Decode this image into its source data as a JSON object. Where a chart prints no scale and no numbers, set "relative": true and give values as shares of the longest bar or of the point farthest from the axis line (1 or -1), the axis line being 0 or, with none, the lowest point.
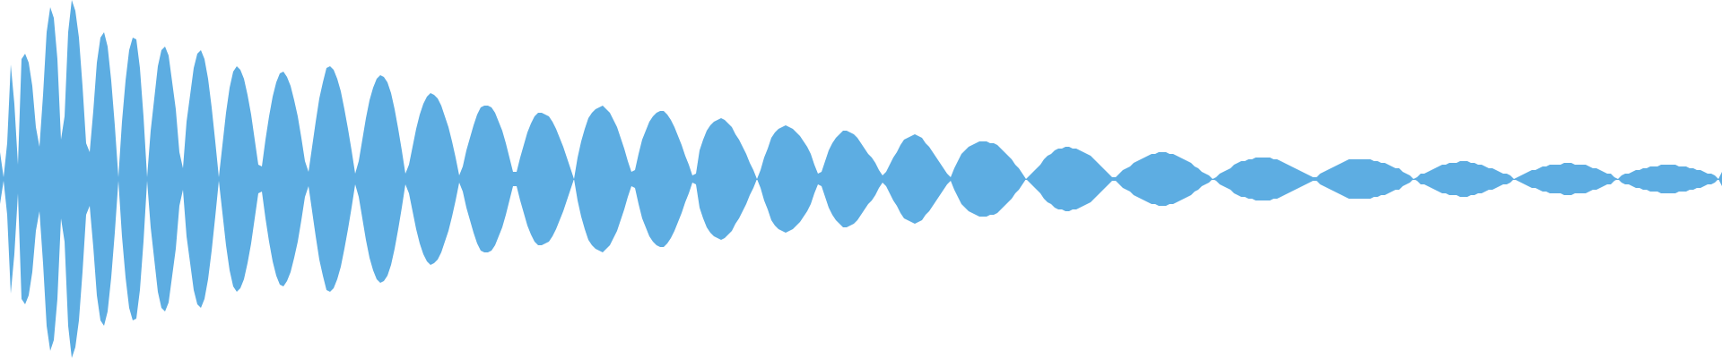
{
  "chart_data": {
    "type": "area",
    "relative": true,
    "categories": [
      null,
      null,
      null,
      null,
      null,
      null,
      null,
      null,
      null,
      null,
      null,
      null,
      null,
      null,
      null,
      null,
      null,
      null,
      null,
      null,
      null,
      null,
      null,
      null,
      null,
      null,
      null,
      null,
      null,
      null,
      null,
      null,
      null,
      null,
      null,
      null,
      null,
      null,
      null,
      null,
      null,
      null,
      null,
      null,
      null,
      null,
      null,
      null,
      null,
      null,
      null,
      null,
      null,
      null,
      null,
      null,
      null,
      null,
      null,
      null,
      null,
      null,
      null,
      null,
      null,
      null,
      null,
      null,
      null,
      null,
      null,
      null,
      null,
      null,
      null,
      null,
      null,
      null,
      null,
      null,
      null,
      null,
      null,
      null,
      null,
      null,
      null,
      null,
      null,
      null,
      null,
      null,
      null,
      null,
      null,
      null,
      null,
      null,
      null,
      null,
      null,
      null,
      null,
      null,
      null,
      null,
      null,
      null,
      null,
      null,
      null,
      null,
      null,
      null,
      null,
      null,
      null,
      null,
      null,
      null,
      null,
      null,
      null,
      null,
      null,
      null,
      null,
      null,
      null,
      null,
      null,
      null,
      null,
      null,
      null,
      null,
      null,
      null,
      null,
      null,
      null,
      null,
      null,
      null,
      null,
      null,
      null,
      null,
      null,
      null,
      null,
      null,
      null,
      null,
      null,
      null,
      null,
      null,
      null,
      null,
      null,
      null,
      null,
      null,
      null,
      null,
      null,
      null,
      null,
      null,
      null,
      null,
      null,
      null,
      null,
      null,
      null,
      null,
      null,
      null,
      null,
      null,
      null,
      null,
      null,
      null,
      null,
      null,
      null,
      null,
      null,
      null,
      null,
      null,
      null,
      null,
      null,
      null,
      null,
      null,
      null,
      null,
      null,
      null,
      null,
      null,
      null,
      null,
      null,
      null,
      null,
      null,
      null,
      null,
      null,
      null,
      null,
      null,
      null,
      null,
      null,
      null,
      null,
      null,
      null,
      null,
      null,
      null,
      null,
      null,
      null,
      null,
      null,
      null,
      null,
      null,
      null,
      null,
      null,
      null,
      null,
      null,
      null,
      null,
      null,
      null,
      null,
      null,
      null,
      null,
      null,
      null,
      null,
      null,
      null,
      null,
      null,
      null,
      null,
      null,
      null,
      null,
      null,
      null,
      null,
      null,
      null,
      null,
      null,
      null,
      null,
      null,
      null,
      null,
      null,
      null,
      null,
      null,
      null,
      null,
      null,
      null,
      null,
      null,
      null,
      null,
      null,
      null,
      null,
      null,
      null,
      null,
      null,
      null,
      null,
      null,
      null,
      null,
      null,
      null,
      null,
      null,
      null,
      null,
      null,
      null,
      null,
      null,
      null,
      null,
      null,
      null,
      null,
      null,
      null,
      null,
      null,
      null,
      null,
      null,
      null,
      null,
      null,
      null,
      null,
      null,
      null,
      null,
      null,
      null,
      null,
      null,
      null,
      null,
      null,
      null,
      null,
      null,
      null,
      null,
      null,
      null,
      null,
      null,
      null,
      null,
      null,
      null,
      null,
      null,
      null,
      null,
      null,
      null,
      null,
      null,
      null,
      null,
      null,
      null,
      null,
      null,
      null,
      null,
      null,
      null,
      null,
      null,
      null,
      null,
      null,
      null,
      null,
      null,
      null,
      null,
      null,
      null,
      null,
      null,
      null,
      null,
      null,
      null,
      null,
      null,
      null,
      null,
      null,
      null,
      null,
      null,
      null,
      null,
      null,
      null,
      null,
      null,
      null,
      null,
      null,
      null,
      null,
      null,
      null,
      null,
      null,
      null,
      null,
      null,
      null,
      null,
      null,
      null,
      null,
      null,
      null,
      null,
      null,
      null,
      null,
      null,
      null,
      null,
      null,
      null,
      null,
      null,
      null,
      null,
      null,
      null,
      null,
      null,
      null,
      null,
      null,
      null,
      null,
      null,
      null,
      null,
      null,
      null,
      null,
      null,
      null,
      null,
      null,
      null,
      null,
      null,
      null,
      null,
      null,
      null,
      null,
      null,
      null,
      null,
      null,
      null,
      null,
      null,
      null,
      null,
      null,
      null,
      null,
      null,
      null,
      null,
      null,
      null,
      null,
      null,
      null,
      null,
      null,
      null,
      null
    ],
    "series": [
      {
        "color": "#5dade2",
        "values": [
          0.15,
          0.01,
          0.2,
          0.64,
          0.42,
          0.08,
          0.67,
          0.7,
          0.65,
          0.52,
          0.29,
          0.18,
          0.47,
          0.82,
          0.96,
          0.9,
          0.67,
          0.22,
          0.35,
          0.82,
          1.0,
          0.94,
          0.79,
          0.52,
          0.2,
          0.15,
          0.38,
          0.65,
          0.79,
          0.82,
          0.74,
          0.55,
          0.3,
          0.01,
          0.32,
          0.55,
          0.72,
          0.79,
          0.78,
          0.62,
          0.35,
          0.01,
          0.27,
          0.45,
          0.63,
          0.72,
          0.74,
          0.69,
          0.54,
          0.39,
          0.15,
          0.06,
          0.32,
          0.47,
          0.62,
          0.7,
          0.72,
          0.67,
          0.56,
          0.4,
          0.21,
          0.01,
          0.19,
          0.37,
          0.51,
          0.6,
          0.63,
          0.61,
          0.56,
          0.47,
          0.36,
          0.22,
          0.08,
          0.07,
          0.22,
          0.35,
          0.46,
          0.54,
          0.59,
          0.6,
          0.57,
          0.52,
          0.44,
          0.35,
          0.23,
          0.1,
          0.04,
          0.18,
          0.32,
          0.45,
          0.54,
          0.62,
          0.63,
          0.61,
          0.56,
          0.49,
          0.39,
          0.28,
          0.16,
          0.03,
          0.1,
          0.22,
          0.34,
          0.44,
          0.51,
          0.56,
          0.58,
          0.57,
          0.54,
          0.48,
          0.39,
          0.28,
          0.16,
          0.03,
          0.08,
          0.18,
          0.28,
          0.36,
          0.42,
          0.46,
          0.48,
          0.47,
          0.45,
          0.41,
          0.35,
          0.29,
          0.21,
          0.12,
          0.02,
          0.07,
          0.16,
          0.23,
          0.3,
          0.36,
          0.4,
          0.41,
          0.41,
          0.4,
          0.37,
          0.32,
          0.27,
          0.2,
          0.12,
          0.04,
          0.04,
          0.12,
          0.19,
          0.26,
          0.31,
          0.35,
          0.37,
          0.37,
          0.36,
          0.35,
          0.32,
          0.28,
          0.23,
          0.18,
          0.12,
          0.06,
          0,
          0.12,
          0.21,
          0.28,
          0.34,
          0.37,
          0.39,
          0.4,
          0.41,
          0.39,
          0.37,
          0.33,
          0.29,
          0.23,
          0.17,
          0.1,
          0.04,
          0.05,
          0.14,
          0.22,
          0.27,
          0.32,
          0.35,
          0.37,
          0.38,
          0.38,
          0.36,
          0.33,
          0.29,
          0.24,
          0.19,
          0.13,
          0.08,
          0.02,
          0.03,
          0.16,
          0.22,
          0.27,
          0.3,
          0.32,
          0.33,
          0.34,
          0.33,
          0.31,
          0.29,
          0.25,
          0.22,
          0.18,
          0.14,
          0.09,
          0.05,
          0,
          0.05,
          0.12,
          0.17,
          0.23,
          0.26,
          0.28,
          0.29,
          0.3,
          0.29,
          0.28,
          0.26,
          0.24,
          0.21,
          0.18,
          0.14,
          0.08,
          0.03,
          0.04,
          0.1,
          0.16,
          0.2,
          0.23,
          0.25,
          0.27,
          0.27,
          0.26,
          0.25,
          0.23,
          0.2,
          0.17,
          0.14,
          0.12,
          0.09,
          0.05,
          0.02,
          0.04,
          0.08,
          0.12,
          0.15,
          0.19,
          0.22,
          0.23,
          0.24,
          0.25,
          0.24,
          0.23,
          0.2,
          0.18,
          0.15,
          0.12,
          0.09,
          0.06,
          0.03,
          0.01,
          0.06,
          0.1,
          0.14,
          0.16,
          0.18,
          0.19,
          0.2,
          0.21,
          0.21,
          0.21,
          0.2,
          0.2,
          0.19,
          0.17,
          0.15,
          0.13,
          0.11,
          0.08,
          0.06,
          0.03,
          0,
          0.02,
          0.04,
          0.06,
          0.08,
          0.11,
          0.13,
          0.14,
          0.16,
          0.17,
          0.17,
          0.18,
          0.18,
          0.17,
          0.17,
          0.16,
          0.15,
          0.14,
          0.13,
          0.11,
          0.09,
          0.07,
          0.05,
          0.03,
          0.01,
          0.01,
          0.03,
          0.05,
          0.06,
          0.07,
          0.09,
          0.1,
          0.11,
          0.12,
          0.13,
          0.14,
          0.14,
          0.15,
          0.15,
          0.15,
          0.14,
          0.14,
          0.13,
          0.12,
          0.11,
          0.1,
          0.09,
          0.07,
          0.06,
          0.04,
          0.03,
          0.02,
          0,
          0.01,
          0.03,
          0.04,
          0.05,
          0.06,
          0.08,
          0.09,
          0.1,
          0.1,
          0.11,
          0.11,
          0.12,
          0.12,
          0.12,
          0.12,
          0.12,
          0.11,
          0.11,
          0.1,
          0.09,
          0.08,
          0.07,
          0.06,
          0.05,
          0.04,
          0.03,
          0.02,
          0.01,
          0.01,
          0.03,
          0.04,
          0.05,
          0.06,
          0.07,
          0.08,
          0.09,
          0.1,
          0.11,
          0.11,
          0.11,
          0.11,
          0.11,
          0.11,
          0.11,
          0.1,
          0.1,
          0.09,
          0.09,
          0.08,
          0.07,
          0.06,
          0.06,
          0.04,
          0.03,
          0.02,
          0,
          0.01,
          0.03,
          0.03,
          0.04,
          0.05,
          0.06,
          0.07,
          0.08,
          0.08,
          0.09,
          0.09,
          0.09,
          0.1,
          0.1,
          0.1,
          0.09,
          0.09,
          0.08,
          0.08,
          0.07,
          0.06,
          0.06,
          0.05,
          0.04,
          0.03,
          0.03,
          0.02,
          0,
          0.01,
          0.02,
          0.03,
          0.04,
          0.05,
          0.05,
          0.06,
          0.07,
          0.07,
          0.08,
          0.08,
          0.08,
          0.08,
          0.09,
          0.09,
          0.09,
          0.08,
          0.08,
          0.08,
          0.08,
          0.07,
          0.06,
          0.06,
          0.05,
          0.04,
          0.03,
          0.03,
          0.01,
          0,
          0.02,
          0.03,
          0.03,
          0.04,
          0.05,
          0.05,
          0.06,
          0.06,
          0.07,
          0.07,
          0.07,
          0.08,
          0.08,
          0.08,
          0.08,
          0.08,
          0.07,
          0.07,
          0.07,
          0.06,
          0.06,
          0.05,
          0.05,
          0.04,
          0.03,
          0.03,
          0.02,
          0,
          0.04
        ]
      },
      {
        "color": "#5dade2",
        "values": [
          -0.14,
          -0.01,
          -0.2,
          -0.64,
          -0.42,
          -0.08,
          -0.67,
          -0.7,
          -0.65,
          -0.52,
          -0.29,
          -0.18,
          -0.47,
          -0.82,
          -0.96,
          -0.9,
          -0.67,
          -0.22,
          -0.35,
          -0.82,
          -1.0,
          -0.94,
          -0.79,
          -0.52,
          -0.2,
          -0.15,
          -0.38,
          -0.65,
          -0.79,
          -0.82,
          -0.74,
          -0.55,
          -0.3,
          -0.01,
          -0.32,
          -0.55,
          -0.72,
          -0.79,
          -0.78,
          -0.62,
          -0.35,
          -0.01,
          -0.27,
          -0.45,
          -0.63,
          -0.72,
          -0.74,
          -0.69,
          -0.54,
          -0.39,
          -0.15,
          -0.06,
          -0.32,
          -0.47,
          -0.62,
          -0.7,
          -0.72,
          -0.67,
          -0.56,
          -0.4,
          -0.21,
          -0.01,
          -0.19,
          -0.37,
          -0.51,
          -0.6,
          -0.63,
          -0.61,
          -0.56,
          -0.47,
          -0.36,
          -0.22,
          -0.08,
          -0.07,
          -0.22,
          -0.35,
          -0.46,
          -0.54,
          -0.59,
          -0.6,
          -0.57,
          -0.52,
          -0.44,
          -0.35,
          -0.23,
          -0.1,
          -0.04,
          -0.18,
          -0.32,
          -0.45,
          -0.54,
          -0.62,
          -0.63,
          -0.61,
          -0.56,
          -0.49,
          -0.39,
          -0.28,
          -0.16,
          -0.03,
          -0.1,
          -0.22,
          -0.34,
          -0.44,
          -0.51,
          -0.56,
          -0.58,
          -0.57,
          -0.54,
          -0.48,
          -0.39,
          -0.28,
          -0.16,
          -0.03,
          -0.08,
          -0.18,
          -0.28,
          -0.36,
          -0.42,
          -0.46,
          -0.48,
          -0.47,
          -0.45,
          -0.41,
          -0.35,
          -0.29,
          -0.21,
          -0.12,
          -0.02,
          -0.07,
          -0.16,
          -0.23,
          -0.3,
          -0.36,
          -0.4,
          -0.41,
          -0.41,
          -0.4,
          -0.37,
          -0.32,
          -0.27,
          -0.2,
          -0.12,
          -0.04,
          -0.04,
          -0.12,
          -0.19,
          -0.26,
          -0.31,
          -0.35,
          -0.37,
          -0.37,
          -0.36,
          -0.35,
          -0.32,
          -0.28,
          -0.23,
          -0.18,
          -0.12,
          -0.06,
          0,
          -0.12,
          -0.21,
          -0.28,
          -0.34,
          -0.37,
          -0.39,
          -0.4,
          -0.41,
          -0.39,
          -0.37,
          -0.33,
          -0.29,
          -0.23,
          -0.17,
          -0.1,
          -0.04,
          -0.05,
          -0.14,
          -0.22,
          -0.27,
          -0.32,
          -0.35,
          -0.37,
          -0.38,
          -0.38,
          -0.36,
          -0.33,
          -0.29,
          -0.24,
          -0.19,
          -0.13,
          -0.08,
          -0.02,
          -0.03,
          -0.16,
          -0.22,
          -0.27,
          -0.3,
          -0.32,
          -0.33,
          -0.34,
          -0.33,
          -0.31,
          -0.29,
          -0.25,
          -0.22,
          -0.18,
          -0.14,
          -0.09,
          -0.05,
          0,
          -0.05,
          -0.12,
          -0.17,
          -0.23,
          -0.26,
          -0.28,
          -0.29,
          -0.3,
          -0.29,
          -0.28,
          -0.26,
          -0.24,
          -0.21,
          -0.18,
          -0.14,
          -0.08,
          -0.03,
          -0.04,
          -0.1,
          -0.16,
          -0.2,
          -0.23,
          -0.25,
          -0.27,
          -0.27,
          -0.26,
          -0.25,
          -0.23,
          -0.2,
          -0.17,
          -0.14,
          -0.12,
          -0.09,
          -0.05,
          -0.02,
          -0.04,
          -0.08,
          -0.12,
          -0.15,
          -0.19,
          -0.22,
          -0.23,
          -0.24,
          -0.25,
          -0.24,
          -0.23,
          -0.2,
          -0.18,
          -0.15,
          -0.12,
          -0.09,
          -0.06,
          -0.03,
          -0.01,
          -0.06,
          -0.1,
          -0.14,
          -0.16,
          -0.18,
          -0.19,
          -0.2,
          -0.21,
          -0.21,
          -0.21,
          -0.2,
          -0.2,
          -0.19,
          -0.17,
          -0.15,
          -0.13,
          -0.11,
          -0.08,
          -0.06,
          -0.03,
          0,
          -0.02,
          -0.04,
          -0.06,
          -0.08,
          -0.11,
          -0.13,
          -0.14,
          -0.16,
          -0.17,
          -0.17,
          -0.18,
          -0.18,
          -0.17,
          -0.17,
          -0.16,
          -0.15,
          -0.14,
          -0.13,
          -0.11,
          -0.09,
          -0.07,
          -0.05,
          -0.03,
          -0.01,
          -0.01,
          -0.03,
          -0.05,
          -0.06,
          -0.07,
          -0.09,
          -0.1,
          -0.11,
          -0.12,
          -0.13,
          -0.14,
          -0.14,
          -0.15,
          -0.15,
          -0.15,
          -0.14,
          -0.14,
          -0.13,
          -0.12,
          -0.11,
          -0.1,
          -0.09,
          -0.07,
          -0.06,
          -0.04,
          -0.03,
          -0.02,
          0,
          -0.01,
          -0.03,
          -0.04,
          -0.05,
          -0.06,
          -0.08,
          -0.09,
          -0.1,
          -0.1,
          -0.11,
          -0.11,
          -0.12,
          -0.12,
          -0.12,
          -0.12,
          -0.12,
          -0.11,
          -0.11,
          -0.1,
          -0.09,
          -0.08,
          -0.07,
          -0.06,
          -0.05,
          -0.04,
          -0.03,
          -0.02,
          -0.01,
          -0.01,
          -0.03,
          -0.04,
          -0.05,
          -0.06,
          -0.07,
          -0.08,
          -0.09,
          -0.1,
          -0.11,
          -0.11,
          -0.11,
          -0.11,
          -0.11,
          -0.11,
          -0.11,
          -0.1,
          -0.1,
          -0.09,
          -0.09,
          -0.08,
          -0.07,
          -0.06,
          -0.06,
          -0.04,
          -0.03,
          -0.02,
          0,
          -0.01,
          -0.03,
          -0.03,
          -0.04,
          -0.05,
          -0.06,
          -0.07,
          -0.08,
          -0.08,
          -0.09,
          -0.09,
          -0.09,
          -0.1,
          -0.1,
          -0.1,
          -0.09,
          -0.09,
          -0.08,
          -0.08,
          -0.07,
          -0.06,
          -0.06,
          -0.05,
          -0.04,
          -0.03,
          -0.03,
          -0.02,
          0,
          -0.01,
          -0.02,
          -0.03,
          -0.04,
          -0.05,
          -0.05,
          -0.06,
          -0.07,
          -0.07,
          -0.08,
          -0.08,
          -0.08,
          -0.08,
          -0.09,
          -0.09,
          -0.09,
          -0.08,
          -0.08,
          -0.08,
          -0.08,
          -0.07,
          -0.06,
          -0.06,
          -0.05,
          -0.04,
          -0.03,
          -0.03,
          -0.01,
          0,
          -0.02,
          -0.03,
          -0.03,
          -0.04,
          -0.05,
          -0.05,
          -0.06,
          -0.06,
          -0.07,
          -0.07,
          -0.07,
          -0.08,
          -0.08,
          -0.08,
          -0.08,
          -0.08,
          -0.07,
          -0.07,
          -0.07,
          -0.06,
          -0.06,
          -0.05,
          -0.05,
          -0.04,
          -0.03,
          -0.03,
          -0.02,
          0,
          -0.04
        ]
      }
    ]
  }
}
